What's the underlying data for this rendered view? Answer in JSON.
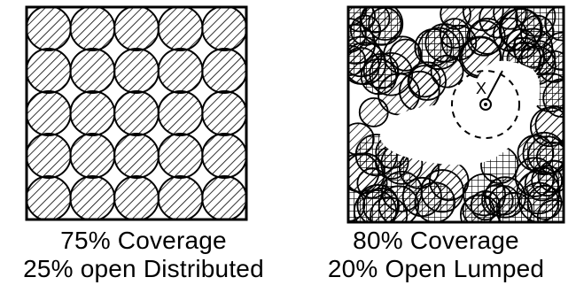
{
  "panels": [
    {
      "coverage_label": "75% Coverage",
      "open_label": "25% open Distributed",
      "coverage_percent": 75,
      "open_percent": 25,
      "pattern": "distributed",
      "grid": {
        "rows": 5,
        "cols": 5
      }
    },
    {
      "coverage_label": "80% Coverage",
      "open_label": "20% Open Lumped",
      "coverage_percent": 80,
      "open_percent": 20,
      "pattern": "lumped",
      "marker": "X"
    }
  ],
  "colors": {
    "ink": "#000000",
    "background": "#ffffff"
  }
}
